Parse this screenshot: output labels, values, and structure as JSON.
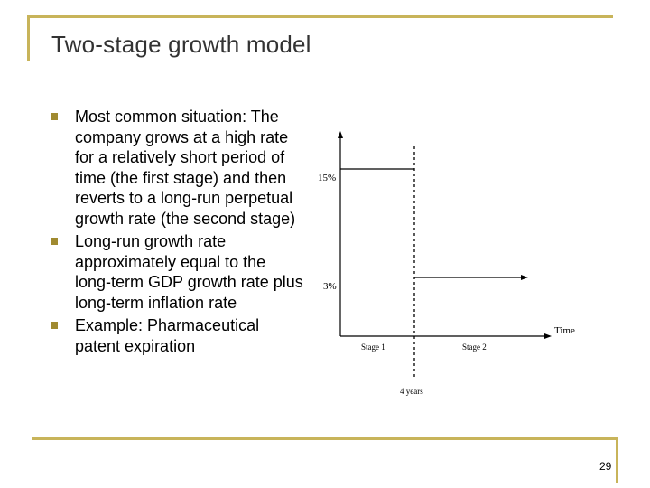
{
  "slide": {
    "title": "Two-stage growth model",
    "page_number": "29"
  },
  "bullets": [
    "Most common situation: The company grows at a high rate for a relatively short period of time (the first stage) and then reverts to a long-run perpetual growth rate (the second stage)",
    "Long-run growth rate approximately equal to the long-term GDP growth rate plus long-term inflation rate",
    "Example: Pharmaceutical patent expiration"
  ],
  "diagram": {
    "high_rate_label": "15%",
    "low_rate_label": "3%",
    "time_axis_label": "Time",
    "stage1_label": "Stage 1",
    "stage2_label": "Stage 2",
    "boundary_label": "4 years"
  },
  "colors": {
    "frame": "#c8b45a",
    "bullet": "#a08a30",
    "title": "#333333"
  }
}
